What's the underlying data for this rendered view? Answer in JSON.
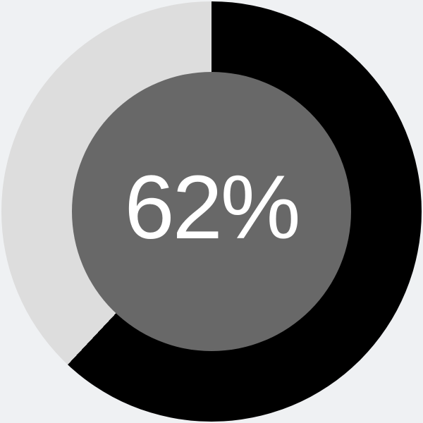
{
  "chart_data": {
    "type": "pie",
    "style": "donut",
    "direction": "clockwise",
    "start_angle_deg": 0,
    "slices": [
      {
        "label": "filled",
        "value": 62,
        "color": "#000000"
      },
      {
        "label": "track",
        "value": 38,
        "color": "#dddddd"
      }
    ],
    "center_label": "62%",
    "colors": {
      "background": "#eff1f3",
      "center_disc": "#686868",
      "center_text": "#ffffff"
    }
  }
}
